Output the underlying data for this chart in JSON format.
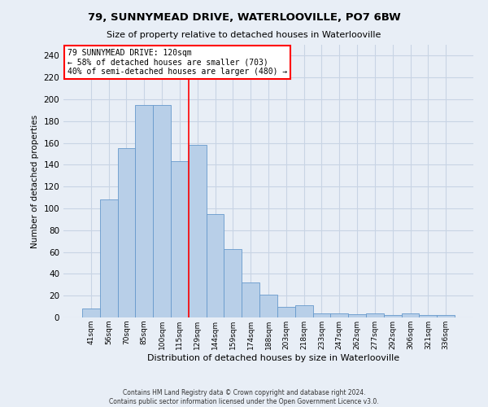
{
  "title": "79, SUNNYMEAD DRIVE, WATERLOOVILLE, PO7 6BW",
  "subtitle": "Size of property relative to detached houses in Waterlooville",
  "xlabel": "Distribution of detached houses by size in Waterlooville",
  "ylabel": "Number of detached properties",
  "footer_line1": "Contains HM Land Registry data © Crown copyright and database right 2024.",
  "footer_line2": "Contains public sector information licensed under the Open Government Licence v3.0.",
  "categories": [
    "41sqm",
    "56sqm",
    "70sqm",
    "85sqm",
    "100sqm",
    "115sqm",
    "129sqm",
    "144sqm",
    "159sqm",
    "174sqm",
    "188sqm",
    "203sqm",
    "218sqm",
    "233sqm",
    "247sqm",
    "262sqm",
    "277sqm",
    "292sqm",
    "306sqm",
    "321sqm",
    "336sqm"
  ],
  "values": [
    8,
    108,
    155,
    195,
    195,
    143,
    158,
    95,
    63,
    32,
    21,
    10,
    11,
    4,
    4,
    3,
    4,
    2,
    4,
    2,
    2
  ],
  "bar_color": "#b8cfe8",
  "bar_edge_color": "#6699cc",
  "grid_color": "#c8d4e4",
  "background_color": "#e8eef6",
  "annotation_box_text": "79 SUNNYMEAD DRIVE: 120sqm\n← 58% of detached houses are smaller (703)\n40% of semi-detached houses are larger (480) →",
  "annotation_box_color": "white",
  "annotation_box_edge_color": "red",
  "vline_x": 5.5,
  "vline_color": "red",
  "ylim": [
    0,
    250
  ],
  "yticks": [
    0,
    20,
    40,
    60,
    80,
    100,
    120,
    140,
    160,
    180,
    200,
    220,
    240
  ]
}
